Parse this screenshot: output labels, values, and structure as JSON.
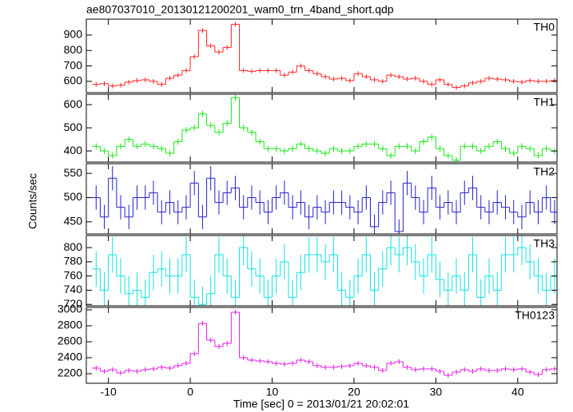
{
  "title": "ae807037010_20130121200201_wam0_trn_4band_short.qdp",
  "ylabel": "Counts/sec",
  "xlabel": "Time [sec] 0 = 2013/01/21 20:02:01",
  "x": [
    -11.5,
    -10.5,
    -9.5,
    -8.5,
    -7.5,
    -6.5,
    -5.5,
    -4.5,
    -3.5,
    -2.5,
    -1.5,
    -0.5,
    0.5,
    1.5,
    2.5,
    3.5,
    4.5,
    5.5,
    6.5,
    7.5,
    8.5,
    9.5,
    10.5,
    11.5,
    12.5,
    13.5,
    14.5,
    15.5,
    16.5,
    17.5,
    18.5,
    19.5,
    20.5,
    21.5,
    22.5,
    23.5,
    24.5,
    25.5,
    26.5,
    27.5,
    28.5,
    29.5,
    30.5,
    31.5,
    32.5,
    33.5,
    34.5,
    35.5,
    36.5,
    37.5,
    38.5,
    39.5,
    40.5,
    41.5,
    42.5,
    43.5,
    44.5
  ],
  "xlim": [
    -12.7,
    44.8
  ],
  "xticks": [
    -10,
    0,
    10,
    20,
    30,
    40
  ],
  "chart_data": [
    {
      "type": "step",
      "name": "TH0",
      "color": "#ff1f1f",
      "error": 15,
      "ylim": [
        527,
        1003
      ],
      "yticks": [
        600,
        700,
        800,
        900
      ],
      "values": [
        580,
        585,
        570,
        575,
        595,
        605,
        610,
        600,
        580,
        620,
        640,
        670,
        760,
        930,
        830,
        790,
        820,
        970,
        670,
        665,
        670,
        670,
        670,
        640,
        660,
        700,
        670,
        650,
        630,
        615,
        620,
        605,
        650,
        630,
        610,
        600,
        640,
        630,
        615,
        620,
        600,
        580,
        610,
        580,
        560,
        570,
        590,
        600,
        620,
        615,
        610,
        600,
        595,
        605,
        600,
        600,
        605
      ]
    },
    {
      "type": "step",
      "name": "TH1",
      "color": "#14e614",
      "error": 13,
      "ylim": [
        352,
        645
      ],
      "yticks": [
        400,
        500,
        600
      ],
      "values": [
        420,
        400,
        380,
        420,
        450,
        420,
        430,
        420,
        410,
        390,
        440,
        490,
        500,
        560,
        510,
        480,
        520,
        630,
        500,
        480,
        440,
        410,
        410,
        400,
        410,
        430,
        410,
        400,
        390,
        410,
        400,
        400,
        420,
        430,
        430,
        410,
        380,
        420,
        420,
        400,
        440,
        460,
        410,
        380,
        360,
        420,
        420,
        400,
        420,
        440,
        410,
        390,
        420,
        410,
        380,
        410,
        400
      ]
    },
    {
      "type": "step",
      "name": "TH2",
      "color": "#2020cc",
      "error": 25,
      "ylim": [
        425,
        570
      ],
      "yticks": [
        450,
        500,
        550
      ],
      "values": [
        500,
        460,
        540,
        480,
        460,
        500,
        500,
        510,
        470,
        490,
        470,
        480,
        530,
        460,
        540,
        490,
        510,
        520,
        480,
        500,
        490,
        470,
        500,
        510,
        480,
        490,
        460,
        480,
        470,
        490,
        490,
        480,
        470,
        500,
        440,
        490,
        510,
        430,
        530,
        500,
        470,
        520,
        480,
        490,
        470,
        510,
        520,
        480,
        470,
        490,
        480,
        470,
        460,
        490,
        470,
        500,
        470
      ]
    },
    {
      "type": "step",
      "name": "TH3",
      "color": "#10e0e0",
      "error": 25,
      "ylim": [
        718,
        817
      ],
      "yticks": [
        720,
        740,
        760,
        780,
        800
      ],
      "values": [
        770,
        740,
        790,
        760,
        735,
        740,
        730,
        765,
        770,
        760,
        760,
        790,
        730,
        720,
        735,
        790,
        760,
        730,
        800,
        770,
        760,
        730,
        760,
        780,
        730,
        765,
        790,
        790,
        780,
        790,
        740,
        730,
        760,
        790,
        740,
        770,
        800,
        790,
        800,
        780,
        760,
        790,
        755,
        740,
        760,
        740,
        790,
        730,
        760,
        740,
        790,
        790,
        800,
        780,
        760,
        740,
        760
      ]
    },
    {
      "type": "step",
      "name": "TH0123",
      "color": "#e619e6",
      "error": 30,
      "ylim": [
        2080,
        3030
      ],
      "yticks": [
        2200,
        2400,
        2600,
        2800,
        3000
      ],
      "values": [
        2270,
        2230,
        2250,
        2210,
        2240,
        2230,
        2250,
        2260,
        2280,
        2270,
        2300,
        2330,
        2450,
        2830,
        2620,
        2540,
        2580,
        2970,
        2400,
        2370,
        2360,
        2350,
        2330,
        2320,
        2330,
        2370,
        2350,
        2300,
        2280,
        2280,
        2290,
        2300,
        2330,
        2300,
        2280,
        2240,
        2330,
        2350,
        2280,
        2250,
        2260,
        2260,
        2230,
        2180,
        2220,
        2250,
        2230,
        2260,
        2240,
        2240,
        2260,
        2250,
        2260,
        2220,
        2190,
        2250,
        2260
      ]
    }
  ]
}
